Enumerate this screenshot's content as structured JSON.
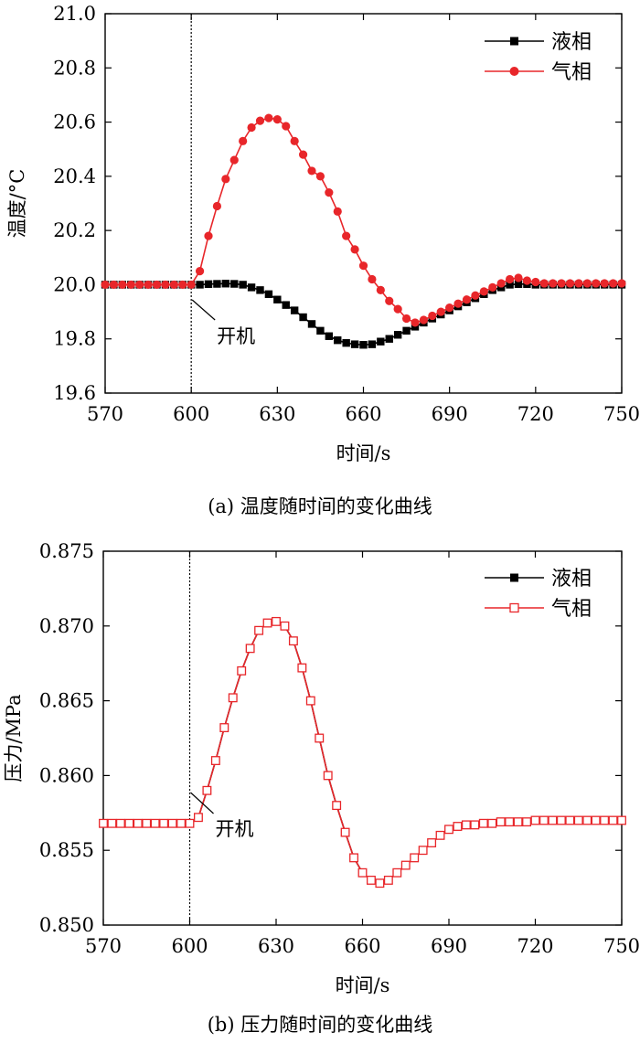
{
  "chart_data": [
    {
      "type": "line",
      "caption": "(a) 温度随时间的变化曲线",
      "xlabel": "时间/s",
      "ylabel": "温度/°C",
      "xlim": [
        570,
        750
      ],
      "ylim": [
        19.6,
        21.0
      ],
      "x_ticks": [
        "570",
        "600",
        "630",
        "660",
        "690",
        "720",
        "750"
      ],
      "y_ticks": [
        "19.6",
        "19.8",
        "20.0",
        "20.2",
        "20.4",
        "20.6",
        "20.8",
        "21.0"
      ],
      "legend_position": "top-right",
      "annotation": {
        "text": "开机",
        "x": 600
      },
      "vline_x": 600,
      "series": [
        {
          "name": "液相",
          "color": "#000000",
          "marker": "square-filled",
          "x": [
            570,
            573,
            576,
            579,
            582,
            585,
            588,
            591,
            594,
            597,
            600,
            603,
            606,
            609,
            612,
            615,
            618,
            621,
            624,
            627,
            630,
            633,
            636,
            639,
            642,
            645,
            648,
            651,
            654,
            657,
            660,
            663,
            666,
            669,
            672,
            675,
            678,
            681,
            684,
            687,
            690,
            693,
            696,
            699,
            702,
            705,
            708,
            711,
            714,
            717,
            720,
            723,
            726,
            729,
            732,
            735,
            738,
            741,
            744,
            747,
            750
          ],
          "y": [
            20.0,
            20.0,
            20.0,
            20.0,
            20.0,
            20.0,
            20.0,
            20.0,
            20.0,
            20.0,
            20.0,
            20.0,
            20.002,
            20.003,
            20.004,
            20.003,
            20.0,
            19.99,
            19.98,
            19.965,
            19.945,
            19.925,
            19.905,
            19.88,
            19.855,
            19.83,
            19.81,
            19.795,
            19.785,
            19.78,
            19.778,
            19.78,
            19.79,
            19.8,
            19.815,
            19.83,
            19.845,
            19.86,
            19.875,
            19.89,
            19.905,
            19.92,
            19.935,
            19.95,
            19.965,
            19.98,
            19.99,
            20.0,
            20.002,
            20.002,
            20.0,
            20.0,
            20.0,
            20.0,
            20.0,
            20.0,
            20.0,
            20.0,
            20.0,
            20.0,
            20.0
          ]
        },
        {
          "name": "气相",
          "color": "#e8262a",
          "marker": "circle-filled",
          "x": [
            570,
            573,
            576,
            579,
            582,
            585,
            588,
            591,
            594,
            597,
            600,
            603,
            606,
            609,
            612,
            615,
            618,
            621,
            624,
            627,
            630,
            633,
            636,
            639,
            642,
            645,
            648,
            651,
            654,
            657,
            660,
            663,
            666,
            669,
            672,
            675,
            678,
            681,
            684,
            687,
            690,
            693,
            696,
            699,
            702,
            705,
            708,
            711,
            714,
            717,
            720,
            723,
            726,
            729,
            732,
            735,
            738,
            741,
            744,
            747,
            750
          ],
          "y": [
            20.0,
            20.0,
            20.0,
            20.0,
            20.0,
            20.0,
            20.0,
            20.0,
            20.0,
            20.0,
            20.0,
            20.05,
            20.18,
            20.29,
            20.39,
            20.46,
            20.53,
            20.58,
            20.605,
            20.615,
            20.61,
            20.585,
            20.53,
            20.48,
            20.42,
            20.4,
            20.34,
            20.27,
            20.18,
            20.13,
            20.07,
            20.02,
            19.98,
            19.94,
            19.91,
            19.875,
            19.86,
            19.87,
            19.885,
            19.9,
            19.915,
            19.93,
            19.945,
            19.96,
            19.975,
            19.99,
            20.005,
            20.02,
            20.025,
            20.015,
            20.01,
            20.005,
            20.005,
            20.005,
            20.005,
            20.005,
            20.005,
            20.005,
            20.005,
            20.005,
            20.005
          ]
        }
      ]
    },
    {
      "type": "line",
      "caption": "(b) 压力随时间的变化曲线",
      "xlabel": "时间/s",
      "ylabel": "压力/MPa",
      "xlim": [
        570,
        750
      ],
      "ylim": [
        0.85,
        0.875
      ],
      "x_ticks": [
        "570",
        "600",
        "630",
        "660",
        "690",
        "720",
        "750"
      ],
      "y_ticks": [
        "0.850",
        "0.855",
        "0.860",
        "0.865",
        "0.870",
        "0.875"
      ],
      "legend_position": "top-right",
      "annotation": {
        "text": "开机",
        "x": 600
      },
      "vline_x": 600,
      "series": [
        {
          "name": "液相",
          "color": "#000000",
          "marker": "square-filled",
          "x": [
            570,
            573,
            576,
            579,
            582,
            585,
            588,
            591,
            594,
            597,
            600,
            603,
            606,
            609,
            612,
            615,
            618,
            621,
            624,
            627,
            630,
            633,
            636,
            639,
            642,
            645,
            648,
            651,
            654,
            657,
            660,
            663,
            666,
            669,
            672,
            675,
            678,
            681,
            684,
            687,
            690,
            693,
            696,
            699,
            702,
            705,
            708,
            711,
            714,
            717,
            720,
            723,
            726,
            729,
            732,
            735,
            738,
            741,
            744,
            747,
            750
          ],
          "y": [
            0.8568,
            0.8568,
            0.8568,
            0.8568,
            0.8568,
            0.8568,
            0.8568,
            0.8568,
            0.8568,
            0.8568,
            0.8568,
            0.8572,
            0.859,
            0.861,
            0.8632,
            0.8652,
            0.867,
            0.8685,
            0.8697,
            0.8702,
            0.8703,
            0.87,
            0.869,
            0.8672,
            0.865,
            0.8625,
            0.86,
            0.858,
            0.8562,
            0.8545,
            0.8535,
            0.853,
            0.8528,
            0.853,
            0.8535,
            0.854,
            0.8545,
            0.855,
            0.8555,
            0.856,
            0.8564,
            0.8566,
            0.8567,
            0.8567,
            0.8568,
            0.8568,
            0.8569,
            0.8569,
            0.8569,
            0.8569,
            0.857,
            0.857,
            0.857,
            0.857,
            0.857,
            0.857,
            0.857,
            0.857,
            0.857,
            0.857,
            0.857
          ]
        },
        {
          "name": "气相",
          "color": "#e8262a",
          "marker": "square-open",
          "x": [
            570,
            573,
            576,
            579,
            582,
            585,
            588,
            591,
            594,
            597,
            600,
            603,
            606,
            609,
            612,
            615,
            618,
            621,
            624,
            627,
            630,
            633,
            636,
            639,
            642,
            645,
            648,
            651,
            654,
            657,
            660,
            663,
            666,
            669,
            672,
            675,
            678,
            681,
            684,
            687,
            690,
            693,
            696,
            699,
            702,
            705,
            708,
            711,
            714,
            717,
            720,
            723,
            726,
            729,
            732,
            735,
            738,
            741,
            744,
            747,
            750
          ],
          "y": [
            0.8568,
            0.8568,
            0.8568,
            0.8568,
            0.8568,
            0.8568,
            0.8568,
            0.8568,
            0.8568,
            0.8568,
            0.8568,
            0.8572,
            0.859,
            0.861,
            0.8632,
            0.8652,
            0.867,
            0.8685,
            0.8697,
            0.8702,
            0.8703,
            0.87,
            0.869,
            0.8672,
            0.865,
            0.8625,
            0.86,
            0.858,
            0.8562,
            0.8545,
            0.8535,
            0.853,
            0.8528,
            0.853,
            0.8535,
            0.854,
            0.8545,
            0.855,
            0.8555,
            0.856,
            0.8564,
            0.8566,
            0.8567,
            0.8567,
            0.8568,
            0.8568,
            0.8569,
            0.8569,
            0.8569,
            0.8569,
            0.857,
            0.857,
            0.857,
            0.857,
            0.857,
            0.857,
            0.857,
            0.857,
            0.857,
            0.857,
            0.857
          ]
        }
      ]
    }
  ]
}
